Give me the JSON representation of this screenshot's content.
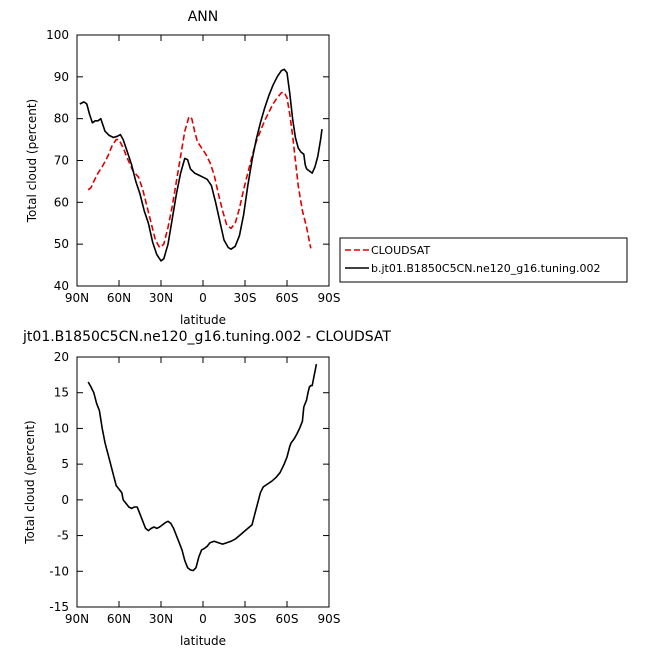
{
  "chart_data": [
    {
      "type": "line",
      "title": "ANN",
      "xlabel": "latitude",
      "ylabel": "Total cloud (percent)",
      "xlim": [
        90,
        -90
      ],
      "ylim": [
        40,
        100
      ],
      "x_tick_values": [
        90,
        60,
        30,
        0,
        -30,
        -60,
        -90
      ],
      "x_tick_labels": [
        "90N",
        "60N",
        "30N",
        "0",
        "30S",
        "60S",
        "90S"
      ],
      "y_ticks": [
        40,
        50,
        60,
        70,
        80,
        90,
        100
      ],
      "grid": false,
      "legend": "right",
      "series": [
        {
          "name": "CLOUDSAT",
          "color": "#e00000",
          "dash": "dashed",
          "points": [
            [
              82,
              63
            ],
            [
              80,
              63.5
            ],
            [
              78,
              65
            ],
            [
              75,
              67
            ],
            [
              72,
              68.5
            ],
            [
              68,
              71
            ],
            [
              65,
              73.5
            ],
            [
              62,
              75
            ],
            [
              60,
              75
            ],
            [
              57,
              73
            ],
            [
              54,
              70.5
            ],
            [
              50,
              67.5
            ],
            [
              46,
              66
            ],
            [
              43,
              63
            ],
            [
              40,
              59
            ],
            [
              37,
              55
            ],
            [
              34,
              51
            ],
            [
              31,
              49.2
            ],
            [
              28,
              50
            ],
            [
              25,
              54
            ],
            [
              22,
              59
            ],
            [
              19,
              65
            ],
            [
              16,
              71
            ],
            [
              13,
              77
            ],
            [
              10,
              80.5
            ],
            [
              8,
              80
            ],
            [
              6,
              77
            ],
            [
              4,
              74.5
            ],
            [
              1,
              73
            ],
            [
              -2,
              71.5
            ],
            [
              -5,
              69.5
            ],
            [
              -8,
              66.5
            ],
            [
              -11,
              62
            ],
            [
              -14,
              58
            ],
            [
              -17,
              54.5
            ],
            [
              -20,
              53.8
            ],
            [
              -23,
              55
            ],
            [
              -26,
              58.5
            ],
            [
              -29,
              63
            ],
            [
              -32,
              67
            ],
            [
              -35,
              71
            ],
            [
              -38,
              74.5
            ],
            [
              -41,
              77
            ],
            [
              -44,
              79.5
            ],
            [
              -47,
              81.5
            ],
            [
              -50,
              83.5
            ],
            [
              -53,
              85
            ],
            [
              -56,
              86.2
            ],
            [
              -58,
              86.3
            ],
            [
              -60,
              85
            ],
            [
              -62,
              81
            ],
            [
              -64,
              76
            ],
            [
              -66,
              70
            ],
            [
              -68,
              64
            ],
            [
              -71,
              58
            ],
            [
              -74,
              54
            ],
            [
              -77,
              49
            ]
          ]
        },
        {
          "name": "b.jt01.B1850C5CN.ne120_g16.tuning.002",
          "color": "#000000",
          "dash": "solid",
          "points": [
            [
              88,
              83.5
            ],
            [
              85,
              84
            ],
            [
              83,
              83.5
            ],
            [
              81,
              81
            ],
            [
              79,
              79
            ],
            [
              77,
              79.5
            ],
            [
              75,
              79.5
            ],
            [
              73,
              80
            ],
            [
              70,
              77
            ],
            [
              67,
              76
            ],
            [
              64,
              75.5
            ],
            [
              61,
              75.8
            ],
            [
              59,
              76.2
            ],
            [
              57,
              75
            ],
            [
              54,
              72
            ],
            [
              51,
              69
            ],
            [
              48,
              65
            ],
            [
              45,
              62
            ],
            [
              42,
              58
            ],
            [
              39,
              55
            ],
            [
              36,
              50.5
            ],
            [
              33,
              47.5
            ],
            [
              30,
              46
            ],
            [
              28,
              46.5
            ],
            [
              25,
              50
            ],
            [
              22,
              56
            ],
            [
              19,
              62
            ],
            [
              16,
              67
            ],
            [
              13,
              70.5
            ],
            [
              11,
              70.2
            ],
            [
              9,
              68
            ],
            [
              6,
              67
            ],
            [
              3,
              66.5
            ],
            [
              0,
              66
            ],
            [
              -3,
              65.5
            ],
            [
              -6,
              64
            ],
            [
              -9,
              60
            ],
            [
              -12,
              55.5
            ],
            [
              -15,
              51
            ],
            [
              -18,
              49.2
            ],
            [
              -20,
              48.8
            ],
            [
              -23,
              49.5
            ],
            [
              -26,
              52
            ],
            [
              -29,
              57
            ],
            [
              -32,
              64
            ],
            [
              -35,
              70
            ],
            [
              -38,
              75
            ],
            [
              -41,
              79
            ],
            [
              -44,
              82.5
            ],
            [
              -47,
              85.5
            ],
            [
              -50,
              88
            ],
            [
              -53,
              90
            ],
            [
              -56,
              91.5
            ],
            [
              -58,
              91.8
            ],
            [
              -60,
              91
            ],
            [
              -62,
              86
            ],
            [
              -64,
              80
            ],
            [
              -66,
              75.5
            ],
            [
              -68,
              73
            ],
            [
              -70,
              72
            ],
            [
              -72,
              71.5
            ],
            [
              -73,
              69
            ],
            [
              -74,
              68
            ],
            [
              -76,
              67.5
            ],
            [
              -78,
              67
            ],
            [
              -80,
              68.5
            ],
            [
              -82,
              71
            ],
            [
              -84,
              75
            ],
            [
              -85,
              77.5
            ]
          ]
        }
      ]
    },
    {
      "type": "line",
      "title": "jt01.B1850C5CN.ne120_g16.tuning.002 - CLOUDSAT",
      "xlabel": "latitude",
      "ylabel": "Total cloud (percent)",
      "xlim": [
        90,
        -90
      ],
      "ylim": [
        -15,
        20
      ],
      "x_tick_values": [
        90,
        60,
        30,
        0,
        -30,
        -60,
        -90
      ],
      "x_tick_labels": [
        "90N",
        "60N",
        "30N",
        "0",
        "30S",
        "60S",
        "90S"
      ],
      "y_ticks": [
        -15,
        -10,
        -5,
        0,
        5,
        10,
        15,
        20
      ],
      "grid": false,
      "series": [
        {
          "color": "#000000",
          "dash": "solid",
          "points": [
            [
              82,
              16.5
            ],
            [
              80,
              15.8
            ],
            [
              78,
              15
            ],
            [
              76,
              13.5
            ],
            [
              74,
              12.5
            ],
            [
              72,
              10
            ],
            [
              70,
              8
            ],
            [
              68,
              6.5
            ],
            [
              66,
              5
            ],
            [
              64,
              3.5
            ],
            [
              62,
              2
            ],
            [
              60,
              1.5
            ],
            [
              58,
              1
            ],
            [
              57,
              0
            ],
            [
              55,
              -0.5
            ],
            [
              53,
              -1
            ],
            [
              51,
              -1.2
            ],
            [
              49,
              -1
            ],
            [
              47,
              -1
            ],
            [
              45,
              -2
            ],
            [
              43,
              -3
            ],
            [
              41,
              -4
            ],
            [
              39,
              -4.3
            ],
            [
              37,
              -4
            ],
            [
              35,
              -3.8
            ],
            [
              33,
              -4
            ],
            [
              31,
              -3.8
            ],
            [
              29,
              -3.5
            ],
            [
              27,
              -3.2
            ],
            [
              25,
              -3
            ],
            [
              23,
              -3.3
            ],
            [
              21,
              -4
            ],
            [
              19,
              -5
            ],
            [
              17,
              -6
            ],
            [
              15,
              -7
            ],
            [
              13,
              -8.5
            ],
            [
              11,
              -9.5
            ],
            [
              9,
              -9.8
            ],
            [
              7,
              -9.9
            ],
            [
              5,
              -9.5
            ],
            [
              3,
              -8
            ],
            [
              1,
              -7
            ],
            [
              -1,
              -6.8
            ],
            [
              -3,
              -6.5
            ],
            [
              -5,
              -6
            ],
            [
              -8,
              -5.8
            ],
            [
              -11,
              -6
            ],
            [
              -14,
              -6.2
            ],
            [
              -17,
              -6
            ],
            [
              -20,
              -5.8
            ],
            [
              -23,
              -5.5
            ],
            [
              -26,
              -5
            ],
            [
              -29,
              -4.5
            ],
            [
              -32,
              -4
            ],
            [
              -35,
              -3.5
            ],
            [
              -37,
              -2
            ],
            [
              -39,
              -0.5
            ],
            [
              -41,
              1
            ],
            [
              -43,
              1.8
            ],
            [
              -46,
              2.2
            ],
            [
              -49,
              2.6
            ],
            [
              -52,
              3.1
            ],
            [
              -55,
              3.8
            ],
            [
              -58,
              5
            ],
            [
              -60,
              6
            ],
            [
              -62,
              7.5
            ],
            [
              -63,
              8
            ],
            [
              -65,
              8.5
            ],
            [
              -67,
              9.2
            ],
            [
              -69,
              10
            ],
            [
              -71,
              11
            ],
            [
              -72,
              13
            ],
            [
              -74,
              14
            ],
            [
              -75,
              15
            ],
            [
              -76,
              15.8
            ],
            [
              -77,
              16
            ],
            [
              -78,
              16
            ],
            [
              -79,
              17
            ],
            [
              -80,
              18
            ],
            [
              -81,
              19
            ]
          ]
        }
      ]
    }
  ]
}
